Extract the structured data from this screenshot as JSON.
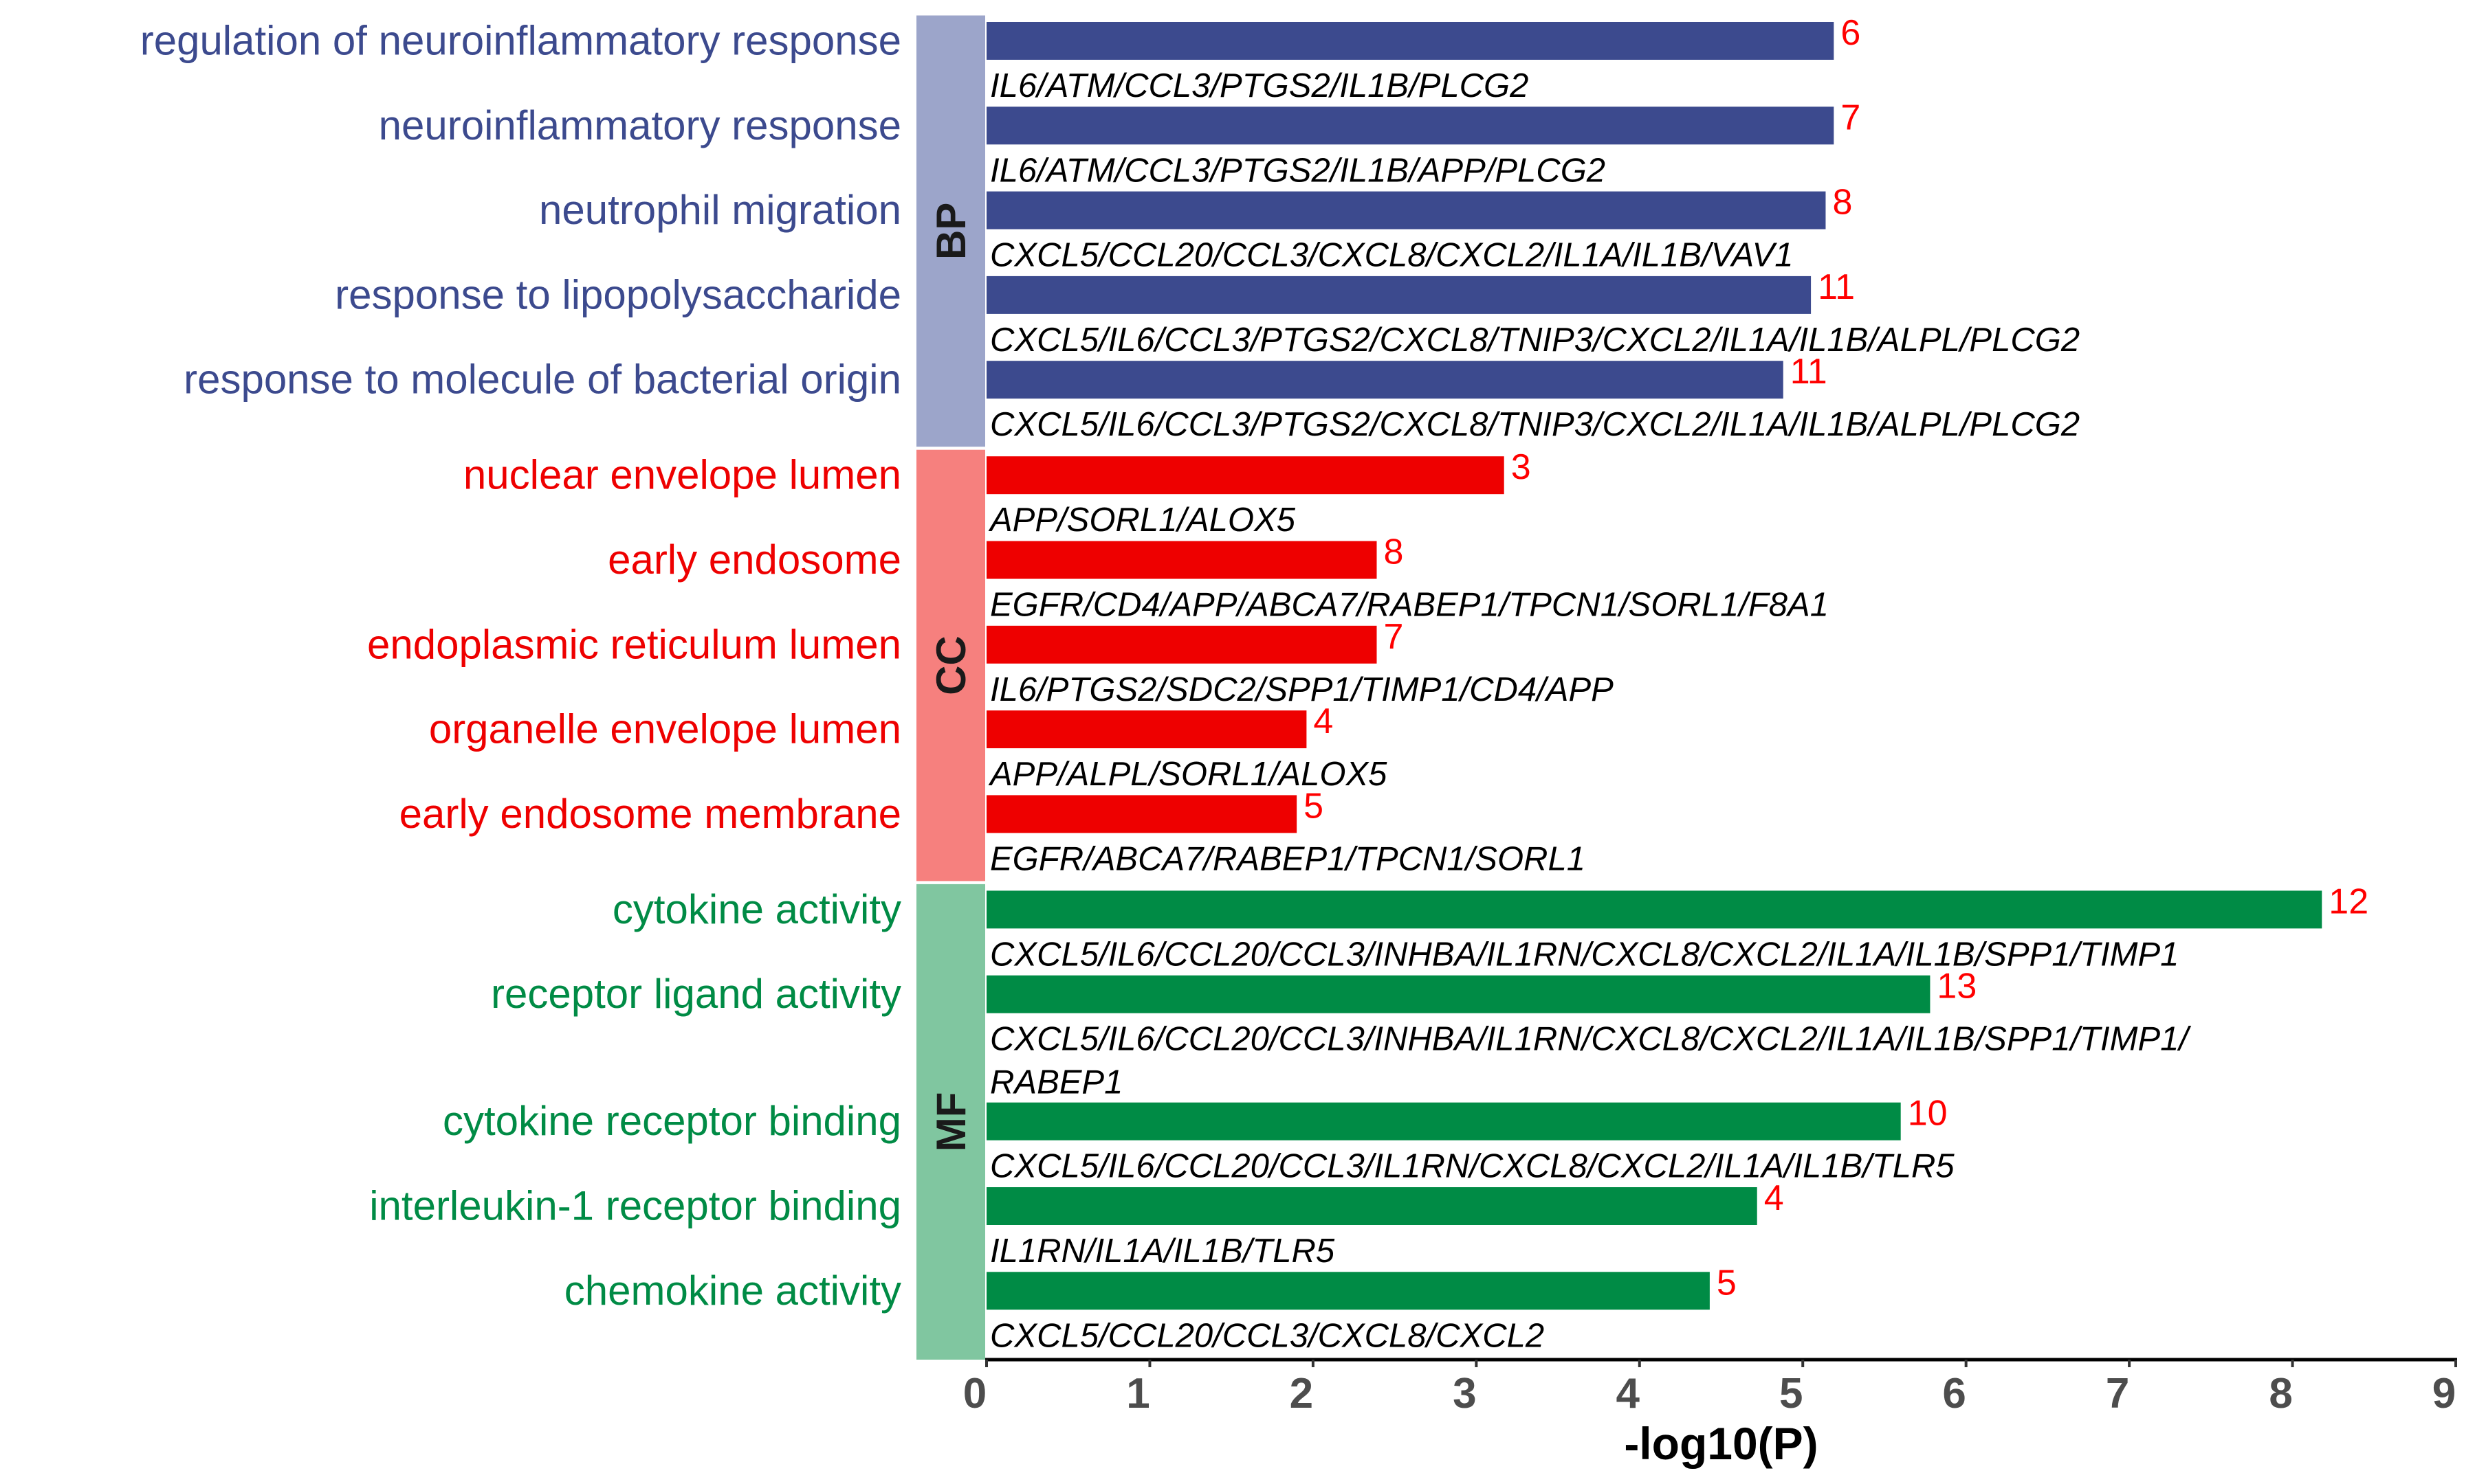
{
  "chart_data": {
    "type": "bar",
    "orientation": "horizontal",
    "title": "",
    "xlabel": "-log10(P)",
    "ylabel": "",
    "xlim": [
      0,
      9
    ],
    "x_ticks": [
      "0",
      "1",
      "2",
      "3",
      "4",
      "5",
      "6",
      "7",
      "8",
      "9"
    ],
    "grid": false,
    "legend": "none",
    "groups": [
      {
        "name": "BP",
        "bar_color": "#3C4A8E",
        "strip_color": "#9CA5CA",
        "label_color": "#3C4A8E",
        "terms": [
          {
            "term": "regulation of neuroinflammatory response",
            "value": 5.19,
            "count": "6",
            "genes": [
              "IL6/ATM/CCL3/PTGS2/IL1B/PLCG2"
            ]
          },
          {
            "term": "neuroinflammatory response",
            "value": 5.19,
            "count": "7",
            "genes": [
              "IL6/ATM/CCL3/PTGS2/IL1B/APP/PLCG2"
            ]
          },
          {
            "term": "neutrophil migration",
            "value": 5.14,
            "count": "8",
            "genes": [
              "CXCL5/CCL20/CCL3/CXCL8/CXCL2/IL1A/IL1B/VAV1"
            ]
          },
          {
            "term": "response to lipopolysaccharide",
            "value": 5.05,
            "count": "11",
            "genes": [
              "CXCL5/IL6/CCL3/PTGS2/CXCL8/TNIP3/CXCL2/IL1A/IL1B/ALPL/PLCG2"
            ]
          },
          {
            "term": "response to molecule of bacterial origin",
            "value": 4.88,
            "count": "11",
            "genes": [
              "CXCL5/IL6/CCL3/PTGS2/CXCL8/TNIP3/CXCL2/IL1A/IL1B/ALPL/PLCG2"
            ]
          }
        ]
      },
      {
        "name": "CC",
        "bar_color": "#EE0000",
        "strip_color": "#F6807E",
        "label_color": "#EE0000",
        "terms": [
          {
            "term": "nuclear envelope lumen",
            "value": 3.17,
            "count": "3",
            "genes": [
              "APP/SORL1/ALOX5"
            ]
          },
          {
            "term": "early endosome",
            "value": 2.39,
            "count": "8",
            "genes": [
              "EGFR/CD4/APP/ABCA7/RABEP1/TPCN1/SORL1/F8A1"
            ]
          },
          {
            "term": "endoplasmic reticulum lumen",
            "value": 2.39,
            "count": "7",
            "genes": [
              "IL6/PTGS2/SDC2/SPP1/TIMP1/CD4/APP"
            ]
          },
          {
            "term": "organelle envelope lumen",
            "value": 1.96,
            "count": "4",
            "genes": [
              "APP/ALPL/SORL1/ALOX5"
            ]
          },
          {
            "term": "early endosome membrane",
            "value": 1.9,
            "count": "5",
            "genes": [
              "EGFR/ABCA7/RABEP1/TPCN1/SORL1"
            ]
          }
        ]
      },
      {
        "name": "MF",
        "bar_color": "#008B45",
        "strip_color": "#80C6A0",
        "label_color": "#008B45",
        "terms": [
          {
            "term": "cytokine activity",
            "value": 8.18,
            "count": "12",
            "genes": [
              "CXCL5/IL6/CCL20/CCL3/INHBA/IL1RN/CXCL8/CXCL2/IL1A/IL1B/SPP1/TIMP1"
            ]
          },
          {
            "term": "receptor ligand activity",
            "value": 5.78,
            "count": "13",
            "genes": [
              "CXCL5/IL6/CCL20/CCL3/INHBA/IL1RN/CXCL8/CXCL2/IL1A/IL1B/SPP1/TIMP1/",
              "RABEP1"
            ]
          },
          {
            "term": "cytokine receptor binding",
            "value": 5.6,
            "count": "10",
            "genes": [
              "CXCL5/IL6/CCL20/CCL3/IL1RN/CXCL8/CXCL2/IL1A/IL1B/TLR5"
            ]
          },
          {
            "term": "interleukin-1 receptor binding",
            "value": 4.72,
            "count": "4",
            "genes": [
              "IL1RN/IL1A/IL1B/TLR5"
            ]
          },
          {
            "term": "chemokine activity",
            "value": 4.43,
            "count": "5",
            "genes": [
              "CXCL5/CCL20/CCL3/CXCL8/CXCL2"
            ]
          }
        ]
      }
    ],
    "count_label_color": "#FF0000"
  }
}
